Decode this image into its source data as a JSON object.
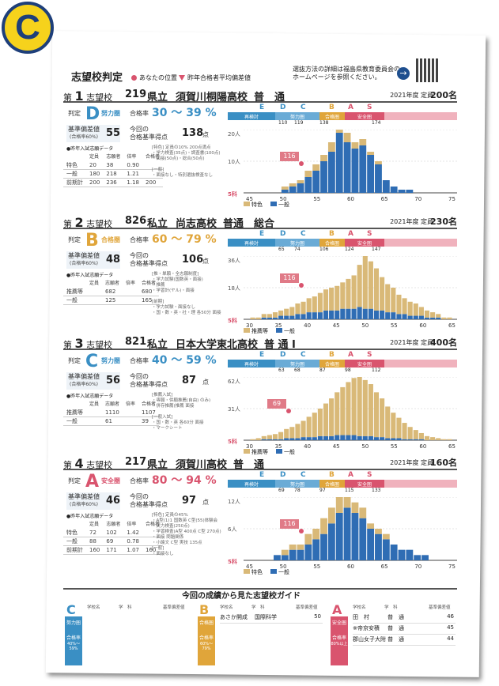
{
  "badge_letter": "C",
  "header": {
    "title": "志望校判定",
    "legend_mine": "あなたの位置",
    "legend_prev": "昨年合格者平均偏差値",
    "notice": "選抜方法の詳細は福島県教育委員会の\nホームページを参照ください。"
  },
  "labels": {
    "hantei": "判定",
    "goukakuritsu": "合格率",
    "kijun": "基準偏差値",
    "kijun_note_1": "(合格率60%)",
    "kijun_note_2": "(合格率60%)",
    "konkai": "今回の",
    "konkai2": "合格基準得点",
    "ten": "点",
    "past": "●昨年入試志願データ",
    "col_teiin": "定員",
    "col_shigan": "志願者",
    "col_bairitsu": "倍率",
    "col_goukaku": "合格者",
    "legend_toku": "特色",
    "legend_ippan": "一般",
    "legend_suisen": "推薦等",
    "zone_E": "E",
    "zone_D": "D",
    "zone_C": "C",
    "zone_B": "B",
    "zone_A": "A",
    "zone_S": "S",
    "zone_saikento": "再検討",
    "zone_doryoku": "努力圏",
    "zone_goukaku": "合格圏",
    "zone_anzen": "安全圏",
    "no_prefix": "第",
    "no_suffix": "志望校",
    "year": "2021年度",
    "teiin_prefix": "定員",
    "five": "5科"
  },
  "schools": [
    {
      "no": "1",
      "code": "219",
      "type": "県立",
      "name": "須賀川桐陽高校",
      "course": "普　通",
      "capacity": "200名",
      "grade": "D",
      "grade_label": "努力圏",
      "grade_color": "#3a8fc4",
      "rate": "30 〜 39 %",
      "kijun": "55",
      "score": "138",
      "zone_ticks": [
        "110",
        "119",
        "138",
        "",
        "174"
      ],
      "ymax": "20人",
      "ymid": "10人",
      "past": {
        "rows": [
          [
            "特色",
            "20",
            "38",
            "0.90",
            ""
          ],
          [
            "一般",
            "180",
            "218",
            "1.21",
            ""
          ],
          [
            "前期計",
            "200",
            "236",
            "1.18",
            "200"
          ]
        ]
      },
      "notes": "[特色] 定員の10% 200点満点\n・学力検査(35点)・調査書(100点)\n・面接(50点)・総合(50点)\n\n[一般]\n・面接なし・特別選抜検査なし",
      "mine": "116",
      "legend": [
        "特色",
        "一般"
      ]
    },
    {
      "no": "2",
      "code": "826",
      "type": "私立",
      "name": "尚志高校",
      "course": "普通　総合",
      "capacity": "230名",
      "grade": "B",
      "grade_label": "合格圏",
      "grade_color": "#e0a53a",
      "rate": "60 〜 79 %",
      "kijun": "48",
      "score": "106",
      "zone_ticks": [
        "65",
        "74",
        "106",
        "124",
        "147"
      ],
      "ymax": "36人",
      "ymid": "18人",
      "past": {
        "rows": [
          [
            "推薦等",
            "",
            "682",
            "",
            "680"
          ],
          [
            "一般",
            "",
            "125",
            "",
            "165"
          ]
        ]
      },
      "notes": "[推・単願・全志願制度]\n・学力試験(国数英・面接)\n・推薦\n・学習計(ヤル)・面接\n\n[前期]\n・学力試験・面接なし\n・国・数・英・社・理 各50分 面接",
      "mine": "116",
      "legend": [
        "推薦等",
        "一般"
      ]
    },
    {
      "no": "3",
      "code": "821",
      "type": "私立",
      "name": "日本大学東北高校",
      "course": "普 通 Ⅰ",
      "capacity": "400名",
      "grade": "C",
      "grade_label": "努力圏",
      "grade_color": "#3a8fc4",
      "rate": "40 〜 59 %",
      "kijun": "56",
      "score": "87",
      "zone_ticks": [
        "63",
        "68",
        "87",
        "98",
        "112"
      ],
      "ymax": "62人",
      "ymid": "31人",
      "past": {
        "rows": [
          [
            "推薦等",
            "",
            "1110",
            "",
            "1107"
          ],
          [
            "一般",
            "",
            "61",
            "",
            "39"
          ]
        ]
      },
      "notes": "[推薦入試]\n・専願・併願推薦(自由) のみ)\n・併存推薦(推薦 面接\n\n[一般入試]\n・国・数・英 各60分 面接\n・マークシート",
      "mine": "69",
      "legend": [
        "推薦等",
        "一般"
      ]
    },
    {
      "no": "4",
      "code": "217",
      "type": "県立",
      "name": "須賀川高校",
      "course": "普　通",
      "capacity": "160名",
      "grade": "A",
      "grade_label": "安全圏",
      "grade_color": "#d9546e",
      "rate": "80 〜 94 %",
      "kijun": "46",
      "score": "97",
      "zone_ticks": [
        "69",
        "78",
        "97",
        "115",
        "133"
      ],
      "ymax": "12人",
      "ymid": "6人",
      "past": {
        "rows": [
          [
            "特色",
            "72",
            "102",
            "1.42",
            ""
          ],
          [
            "一般",
            "88",
            "69",
            "0.78",
            ""
          ],
          [
            "前期計",
            "160",
            "171",
            "1.07",
            "160"
          ]
        ]
      },
      "notes": "[特色] 定員の45%\n・A型(1)1 国数英 C型(55)体験会\n・実力検査(250点)\n・学習検査(A型 400点 C型 270点)\n・面接 問題関係\n・小論文 C型 実技 135点\n[一般]\n・面接なし",
      "mine": "116",
      "legend": [
        "特色",
        "一般"
      ]
    }
  ],
  "guide": {
    "title": "今回の成績から見た志望校ガイド",
    "cols": {
      "school": "学校名",
      "course": "学　科",
      "kijun": "基準偏差値"
    },
    "blocks": [
      {
        "letter": "C",
        "label": "努力圏",
        "rate_label": "合格率",
        "rate": "40%〜59%",
        "color": "#3a8fc4",
        "rows": []
      },
      {
        "letter": "B",
        "label": "合格圏",
        "rate_label": "合格率",
        "rate": "60%〜79%",
        "color": "#e0a53a",
        "rows": [
          {
            "school": "あさか開成",
            "course": "国際科学",
            "kijun": "50"
          }
        ]
      },
      {
        "letter": "A",
        "label": "安全圏",
        "rate_label": "合格率",
        "rate": "80%以上",
        "color": "#d9546e",
        "rows": [
          {
            "school": "田　村",
            "course": "普　通",
            "kijun": "46"
          },
          {
            "school": "※帝京安積",
            "course": "普　通",
            "kijun": "45"
          },
          {
            "school": "郡山女子大附",
            "course": "普　通",
            "kijun": "44"
          }
        ]
      }
    ]
  },
  "axis_ticks": [
    "45",
    "50",
    "55",
    "60",
    "65",
    "70",
    "75"
  ],
  "axis_ticks_b": [
    "30",
    "35",
    "40",
    "45",
    "50",
    "55",
    "60",
    "65"
  ],
  "chart_data": [
    {
      "type": "bar",
      "title": "",
      "x": [
        45,
        46,
        47,
        48,
        49,
        50,
        51,
        52,
        53,
        54,
        55,
        56,
        57,
        58,
        59,
        60,
        61,
        62,
        63,
        64,
        65,
        66,
        67,
        68,
        69,
        70
      ],
      "series": [
        {
          "name": "特色",
          "values": [
            0,
            0,
            0,
            0,
            1,
            1,
            1,
            2,
            2,
            2,
            3,
            3,
            3,
            2,
            2,
            1,
            1,
            0,
            0,
            0,
            0,
            0,
            0,
            0,
            0,
            0
          ]
        },
        {
          "name": "一般",
          "values": [
            0,
            0,
            0,
            0,
            1,
            2,
            3,
            5,
            7,
            10,
            13,
            19,
            16,
            14,
            15,
            12,
            9,
            4,
            2,
            1,
            1,
            0,
            0,
            0,
            0,
            0
          ]
        }
      ],
      "ylim": [
        0,
        20
      ]
    },
    {
      "type": "bar",
      "title": "",
      "x": [
        30,
        31,
        32,
        33,
        34,
        35,
        36,
        37,
        38,
        39,
        40,
        41,
        42,
        43,
        44,
        45,
        46,
        47,
        48,
        49,
        50,
        51,
        52,
        53,
        54,
        55,
        56,
        57,
        58,
        59,
        60,
        61,
        62,
        63,
        64,
        65
      ],
      "series": [
        {
          "name": "推薦等",
          "values": [
            1,
            1,
            2,
            2,
            3,
            3,
            4,
            5,
            6,
            7,
            8,
            9,
            11,
            12,
            13,
            14,
            15,
            17,
            19,
            24,
            30,
            27,
            24,
            19,
            16,
            14,
            11,
            9,
            8,
            7,
            5,
            4,
            3,
            2,
            1,
            1
          ]
        },
        {
          "name": "一般",
          "values": [
            0,
            0,
            1,
            1,
            1,
            2,
            2,
            2,
            3,
            3,
            4,
            4,
            4,
            5,
            5,
            5,
            6,
            6,
            6,
            7,
            6,
            6,
            5,
            5,
            4,
            4,
            3,
            3,
            2,
            2,
            2,
            1,
            1,
            1,
            0,
            0
          ]
        }
      ],
      "ylim": [
        0,
        36
      ]
    },
    {
      "type": "bar",
      "title": "",
      "x": [
        30,
        31,
        32,
        33,
        34,
        35,
        36,
        37,
        38,
        39,
        40,
        41,
        42,
        43,
        44,
        45,
        46,
        47,
        48,
        49,
        50,
        51,
        52,
        53,
        54,
        55,
        56,
        57,
        58,
        59,
        60,
        61,
        62,
        63,
        64,
        65
      ],
      "series": [
        {
          "name": "推薦等",
          "values": [
            1,
            2,
            3,
            4,
            5,
            7,
            9,
            11,
            14,
            16,
            20,
            24,
            27,
            32,
            37,
            42,
            47,
            52,
            56,
            59,
            55,
            51,
            44,
            38,
            31,
            25,
            20,
            16,
            12,
            9,
            6,
            4,
            3,
            2,
            1,
            1
          ]
        },
        {
          "name": "一般",
          "values": [
            0,
            0,
            1,
            1,
            1,
            1,
            2,
            2,
            2,
            3,
            3,
            3,
            4,
            4,
            4,
            5,
            5,
            5,
            5,
            4,
            4,
            4,
            3,
            3,
            2,
            2,
            2,
            1,
            1,
            1,
            1,
            0,
            0,
            0,
            0,
            0
          ]
        }
      ],
      "ylim": [
        0,
        62
      ]
    },
    {
      "type": "bar",
      "title": "",
      "x": [
        40,
        41,
        42,
        43,
        44,
        45,
        46,
        47,
        48,
        49,
        50,
        51,
        52,
        53,
        54,
        55,
        56,
        57,
        58,
        59,
        60,
        61,
        62,
        63,
        64,
        65
      ],
      "series": [
        {
          "name": "特色",
          "values": [
            0,
            0,
            0,
            0,
            1,
            1,
            1,
            2,
            2,
            3,
            3,
            3,
            3,
            2,
            2,
            1,
            1,
            1,
            0,
            0,
            0,
            0,
            0,
            0,
            0,
            0
          ]
        },
        {
          "name": "一般",
          "values": [
            0,
            0,
            0,
            1,
            1,
            2,
            2,
            3,
            4,
            5,
            7,
            9,
            10,
            9,
            8,
            6,
            5,
            4,
            3,
            2,
            2,
            1,
            1,
            0,
            0,
            0
          ]
        }
      ],
      "ylim": [
        0,
        12
      ]
    }
  ]
}
